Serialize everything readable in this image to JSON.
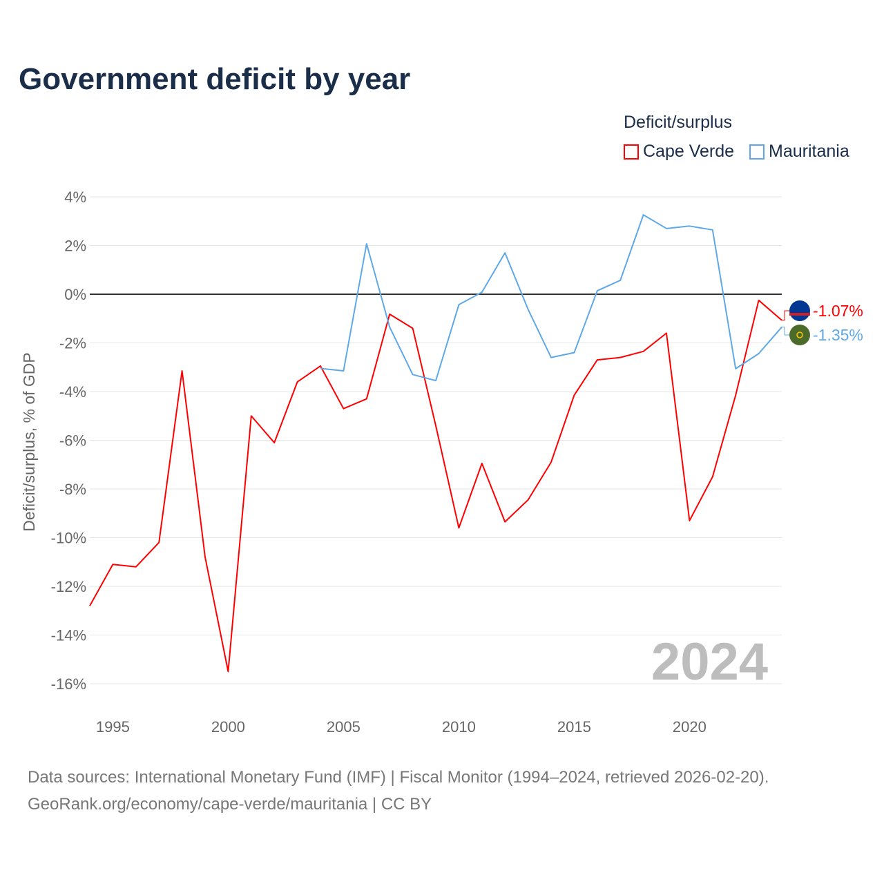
{
  "title": "Government deficit by year",
  "legend": {
    "title": "Deficit/surplus"
  },
  "footer": {
    "line1": "Data sources: International Monetary Fund (IMF) | Fiscal Monitor (1994–2024, retrieved 2026-02-20).",
    "line2": "GeoRank.org/economy/cape-verde/mauritania | CC BY"
  },
  "chart_data": {
    "type": "line",
    "title": "Government deficit by year",
    "xlabel": "",
    "ylabel": "Deficit/surplus, % of GDP",
    "xlim": [
      1994,
      2024
    ],
    "ylim": [
      -16,
      4
    ],
    "yticks": [
      4,
      2,
      0,
      -2,
      -4,
      -6,
      -8,
      -10,
      -12,
      -14,
      -16
    ],
    "ytick_labels": [
      "4%",
      "2%",
      "0%",
      "-2%",
      "-4%",
      "-6%",
      "-8%",
      "-10%",
      "-12%",
      "-14%",
      "-16%"
    ],
    "xticks": [
      1995,
      2000,
      2005,
      2010,
      2015,
      2020
    ],
    "xtick_labels": [
      "1995",
      "2000",
      "2005",
      "2010",
      "2015",
      "2020"
    ],
    "grid": true,
    "legend_position": "top-right",
    "watermark": "2024",
    "series": [
      {
        "name": "Cape Verde",
        "color": "#ff0000",
        "end_label": "-1.07%",
        "flag": "cape-verde-flag-icon",
        "x": [
          1994,
          1995,
          1996,
          1997,
          1998,
          1999,
          2000,
          2001,
          2002,
          2003,
          2004,
          2005,
          2006,
          2007,
          2008,
          2009,
          2010,
          2011,
          2012,
          2013,
          2014,
          2015,
          2016,
          2017,
          2018,
          2019,
          2020,
          2021,
          2022,
          2023,
          2024
        ],
        "values": [
          -12.8,
          -11.1,
          -11.2,
          -10.2,
          -3.15,
          -10.8,
          -15.5,
          -5.0,
          -6.1,
          -3.6,
          -2.95,
          -4.7,
          -4.3,
          -0.82,
          -1.4,
          -5.4,
          -9.6,
          -6.95,
          -9.35,
          -8.45,
          -6.9,
          -4.15,
          -2.7,
          -2.6,
          -2.35,
          -1.6,
          -9.3,
          -7.5,
          -4.15,
          -0.25,
          -1.07
        ]
      },
      {
        "name": "Mauritania",
        "color": "#5fa8e8",
        "end_label": "-1.35%",
        "flag": "mauritania-flag-icon",
        "x": [
          2004,
          2005,
          2006,
          2007,
          2008,
          2009,
          2010,
          2011,
          2012,
          2013,
          2014,
          2015,
          2016,
          2017,
          2018,
          2019,
          2020,
          2021,
          2022,
          2023,
          2024
        ],
        "values": [
          -3.05,
          -3.15,
          2.07,
          -1.35,
          -3.3,
          -3.55,
          -0.43,
          0.08,
          1.7,
          -0.62,
          -2.6,
          -2.4,
          0.14,
          0.57,
          3.26,
          2.7,
          2.8,
          2.64,
          -3.06,
          -2.44,
          -1.35
        ]
      }
    ]
  }
}
